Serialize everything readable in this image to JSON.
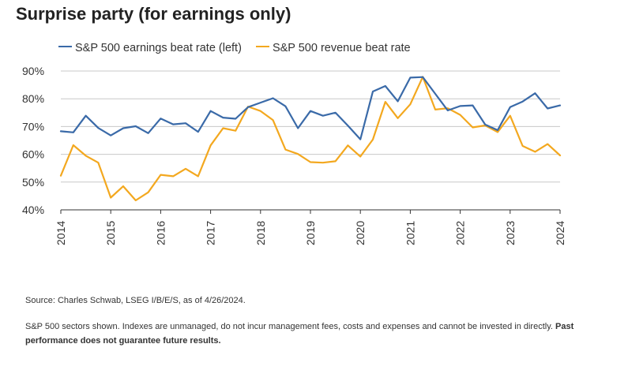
{
  "title": "Surprise party (for earnings only)",
  "legend": [
    {
      "label": "S&P 500 earnings beat rate (left)",
      "color": "#3a6aa8"
    },
    {
      "label": "S&P 500 revenue beat rate",
      "color": "#f3a81f"
    }
  ],
  "chart_data": {
    "type": "line",
    "title": "Surprise party (for earnings only)",
    "xlabel": "",
    "ylabel": "",
    "xlim": [
      2014,
      2024
    ],
    "ylim": [
      40,
      90
    ],
    "y_ticks": [
      90,
      80,
      70,
      60,
      50,
      40
    ],
    "y_tick_labels": [
      "90%",
      "80%",
      "70%",
      "60%",
      "50%",
      "40%"
    ],
    "x_ticks": [
      2014,
      2015,
      2016,
      2017,
      2018,
      2019,
      2020,
      2021,
      2022,
      2023,
      2024
    ],
    "x_tick_labels": [
      "2014",
      "2015",
      "2016",
      "2017",
      "2018",
      "2019",
      "2020",
      "2021",
      "2022",
      "2023",
      "2024"
    ],
    "grid": true,
    "legend_position": "top-left",
    "x": [
      2014.0,
      2014.25,
      2014.5,
      2014.75,
      2015.0,
      2015.25,
      2015.5,
      2015.75,
      2016.0,
      2016.25,
      2016.5,
      2016.75,
      2017.0,
      2017.25,
      2017.5,
      2017.75,
      2018.0,
      2018.25,
      2018.5,
      2018.75,
      2019.0,
      2019.25,
      2019.5,
      2019.75,
      2020.0,
      2020.25,
      2020.5,
      2020.75,
      2021.0,
      2021.25,
      2021.5,
      2021.75,
      2022.0,
      2022.25,
      2022.5,
      2022.75,
      2023.0,
      2023.25,
      2023.5,
      2023.75,
      2024.0
    ],
    "series": [
      {
        "name": "S&P 500 earnings beat rate (left)",
        "color": "#3a6aa8",
        "values": [
          68.3,
          67.9,
          73.9,
          69.5,
          66.8,
          69.4,
          70.1,
          67.6,
          72.9,
          70.8,
          71.2,
          68.1,
          75.6,
          73.2,
          72.8,
          77.0,
          78.6,
          80.2,
          77.3,
          69.4,
          75.6,
          73.9,
          75.0,
          70.3,
          65.4,
          82.6,
          84.6,
          79.1,
          87.6,
          87.8,
          81.8,
          75.8,
          77.4,
          77.6,
          70.7,
          68.7,
          77.0,
          79.0,
          82.0,
          76.5,
          77.6
        ]
      },
      {
        "name": "S&P 500 revenue beat rate",
        "color": "#f3a81f",
        "values": [
          52.3,
          63.3,
          59.5,
          57.0,
          44.4,
          48.5,
          43.4,
          46.3,
          52.6,
          52.1,
          54.8,
          52.1,
          63.2,
          69.4,
          68.5,
          77.2,
          75.6,
          72.3,
          61.7,
          60.1,
          57.2,
          57.0,
          57.5,
          63.2,
          59.2,
          65.3,
          78.9,
          73.0,
          78.0,
          87.9,
          76.1,
          76.6,
          74.2,
          69.7,
          70.4,
          68.0,
          73.9,
          63.0,
          60.9,
          63.7,
          59.6
        ]
      }
    ]
  },
  "footnotes": {
    "source": "Source: Charles Schwab, LSEG I/B/E/S, as of 4/26/2024.",
    "disclaimer": "S&P 500 sectors shown. Indexes are unmanaged, do not incur management fees, costs and expenses and cannot be invested in directly.",
    "disclaimer_bold": "Past performance does not guarantee future results."
  }
}
